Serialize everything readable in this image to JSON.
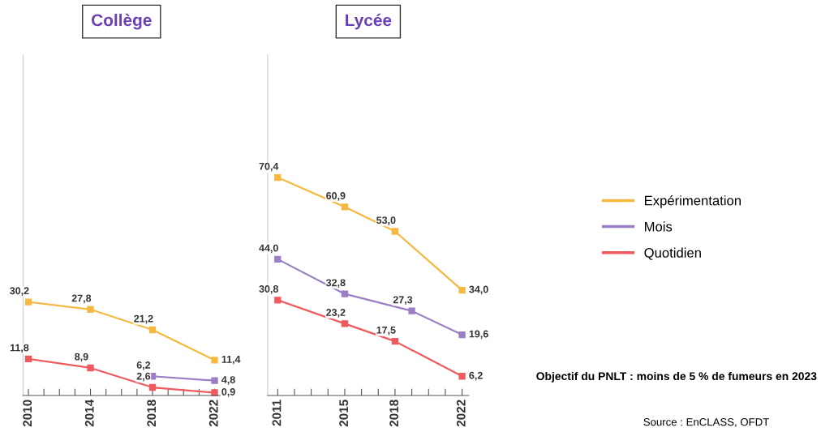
{
  "chart_data": [
    {
      "type": "line",
      "title": "Collège",
      "marker": "square",
      "legend": false,
      "tick_labels": "x",
      "grid": false,
      "xlim": [
        2009.65,
        2022.35
      ],
      "ylim": [
        0,
        110
      ],
      "xticks": [
        2010,
        {
          "value": 2011,
          "label": null
        },
        {
          "value": 2012,
          "label": null
        },
        {
          "value": 2013,
          "label": null
        },
        2014,
        {
          "value": 2015,
          "label": null
        },
        {
          "value": 2016,
          "label": null
        },
        {
          "value": 2017,
          "label": null
        },
        2018,
        {
          "value": 2019,
          "label": null
        },
        {
          "value": 2020,
          "label": null
        },
        {
          "value": 2021,
          "label": null
        },
        2022
      ],
      "series": [
        {
          "color": "#f5b942",
          "x": [
            2010,
            2014,
            2018,
            2022
          ],
          "values": [
            30.2,
            27.8,
            21.2,
            11.4
          ],
          "value_labels": [
            "30,2",
            "27,8",
            "21,2",
            "11,4"
          ]
        },
        {
          "color": "#9b7fc4",
          "x": [
            2018,
            2022
          ],
          "values": [
            6.2,
            4.8
          ],
          "value_labels": [
            "6,2",
            "4,8"
          ]
        },
        {
          "color": "#ef5a5f",
          "x": [
            2010,
            2014,
            2018,
            2022
          ],
          "values": [
            11.8,
            8.9,
            2.6,
            0.9
          ],
          "value_labels": [
            "11,8",
            "8,9",
            "2,6",
            "0,9"
          ]
        }
      ]
    },
    {
      "type": "line",
      "title": "Lycée",
      "marker": "square",
      "legend": "right",
      "tick_labels": "x",
      "grid": false,
      "xlim": [
        2010.4,
        2022.4
      ],
      "ylim": [
        0,
        110
      ],
      "xticks": [
        2011,
        {
          "value": 2012,
          "label": null
        },
        {
          "value": 2013,
          "label": null
        },
        {
          "value": 2014,
          "label": null
        },
        2015,
        {
          "value": 2016,
          "label": null
        },
        {
          "value": 2017,
          "label": null
        },
        2018,
        {
          "value": 2019,
          "label": null
        },
        {
          "value": 2020,
          "label": null
        },
        {
          "value": 2021,
          "label": null
        },
        2022
      ],
      "series": [
        {
          "name": "Expérimentation",
          "color": "#f5b942",
          "x": [
            2011,
            2015,
            2018,
            2022
          ],
          "values": [
            70.4,
            60.9,
            53.0,
            34.0
          ],
          "value_labels": [
            "70,4",
            "60,9",
            "53,0",
            "34,0"
          ]
        },
        {
          "name": "Mois",
          "color": "#9b7fc4",
          "x": [
            2011,
            2015,
            2019,
            2022
          ],
          "values": [
            44.0,
            32.8,
            27.3,
            19.6
          ],
          "value_labels": [
            "44,0",
            "32,8",
            "27,3",
            "19,6"
          ]
        },
        {
          "name": "Quotidien",
          "color": "#ef5a5f",
          "x": [
            2011,
            2015,
            2018,
            2022
          ],
          "values": [
            30.8,
            23.2,
            17.5,
            6.2
          ],
          "value_labels": [
            "30,8",
            "23,2",
            "17,5",
            "6,2"
          ]
        }
      ],
      "annotations": [
        "Objectif du PNLT : moins de 5 % de fumeurs en 2023",
        "Source : EnCLASS, OFDT"
      ]
    }
  ]
}
